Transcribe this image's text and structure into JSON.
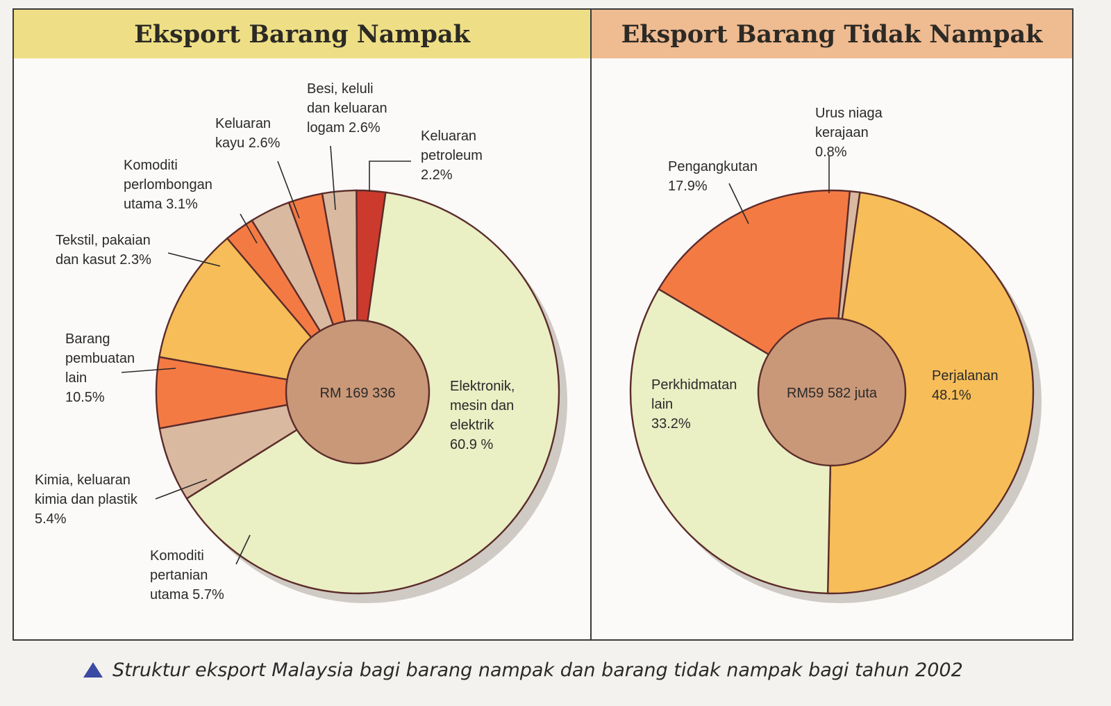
{
  "caption": "Struktur eksport Malaysia bagi barang nampak dan barang tidak nampak bagi tahun 2002",
  "colors": {
    "green": "#eaefc4",
    "orange": "#f6bd59",
    "red_orange": "#f47a44",
    "tan": "#d9b9a0",
    "dark_red": "#cc3a2e",
    "center": "#c99878",
    "outline": "#5b2c2a"
  },
  "chart_data": [
    {
      "type": "pie",
      "title": "Eksport Barang Nampak",
      "center_label": "RM 169 336",
      "slices": [
        {
          "label": [
            "Elektronik,",
            "mesin dan",
            "elektrik",
            "60.9 %"
          ],
          "value": 60.9,
          "color": "#eaefc4"
        },
        {
          "label": [
            "Komoditi",
            "pertanian",
            "utama 5.7%"
          ],
          "value": 5.7,
          "color": "#d9b9a0"
        },
        {
          "label": [
            "Kimia, keluaran",
            "kimia dan plastik",
            "5.4%"
          ],
          "value": 5.4,
          "color": "#f47a44"
        },
        {
          "label": [
            "Barang",
            "pembuatan",
            "lain",
            "10.5%"
          ],
          "value": 10.5,
          "color": "#f6bd59"
        },
        {
          "label": [
            "Tekstil, pakaian",
            "dan kasut 2.3%"
          ],
          "value": 2.3,
          "color": "#f47a44"
        },
        {
          "label": [
            "Komoditi",
            "perlombongan",
            "utama 3.1%"
          ],
          "value": 3.1,
          "color": "#d9b9a0"
        },
        {
          "label": [
            "Keluaran",
            "kayu 2.6%"
          ],
          "value": 2.6,
          "color": "#f47a44"
        },
        {
          "label": [
            "Besi, keluli",
            "dan keluaran",
            "logam 2.6%"
          ],
          "value": 2.6,
          "color": "#d9b9a0"
        },
        {
          "label": [
            "Keluaran",
            "petroleum",
            "2.2%"
          ],
          "value": 2.2,
          "color": "#cc3a2e"
        }
      ]
    },
    {
      "type": "pie",
      "title": "Eksport Barang Tidak Nampak",
      "center_label": "RM59 582 juta",
      "slices": [
        {
          "label": [
            "Perjalanan",
            "48.1%"
          ],
          "value": 48.1,
          "color": "#f6bd59"
        },
        {
          "label": [
            "Perkhidmatan",
            "lain",
            "33.2%"
          ],
          "value": 33.2,
          "color": "#eaefc4"
        },
        {
          "label": [
            "Pengangkutan",
            "17.9%"
          ],
          "value": 17.9,
          "color": "#f47a44"
        },
        {
          "label": [
            "Urus niaga",
            "kerajaan",
            "0.8%"
          ],
          "value": 0.8,
          "color": "#d9b9a0"
        }
      ]
    }
  ]
}
